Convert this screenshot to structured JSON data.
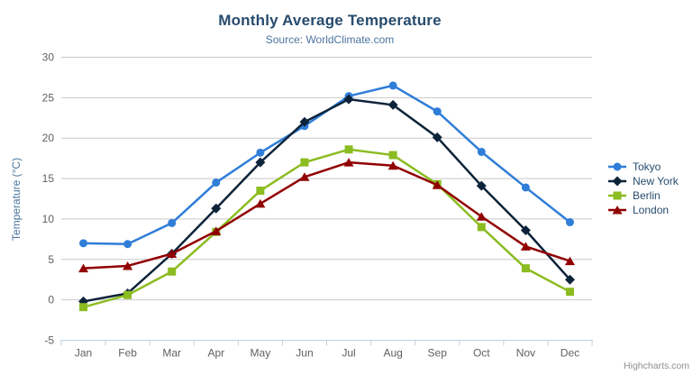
{
  "chart_data": {
    "type": "line",
    "title": "Monthly Average Temperature",
    "subtitle": "Source: WorldClimate.com",
    "xlabel": "",
    "ylabel": "Temperature (°C)",
    "categories": [
      "Jan",
      "Feb",
      "Mar",
      "Apr",
      "May",
      "Jun",
      "Jul",
      "Aug",
      "Sep",
      "Oct",
      "Nov",
      "Dec"
    ],
    "ylim": [
      -5,
      30
    ],
    "yticks": [
      -5,
      0,
      5,
      10,
      15,
      20,
      25,
      30
    ],
    "grid": true,
    "legend_position": "right",
    "series": [
      {
        "name": "Tokyo",
        "color": "#2f7ed8",
        "marker": "circle",
        "values": [
          7.0,
          6.9,
          9.5,
          14.5,
          18.2,
          21.5,
          25.2,
          26.5,
          23.3,
          18.3,
          13.9,
          9.6
        ]
      },
      {
        "name": "New York",
        "color": "#0d233a",
        "marker": "diamond",
        "values": [
          -0.2,
          0.8,
          5.7,
          11.3,
          17.0,
          22.0,
          24.8,
          24.1,
          20.1,
          14.1,
          8.6,
          2.5
        ]
      },
      {
        "name": "Berlin",
        "color": "#8bbc21",
        "marker": "square",
        "values": [
          -0.9,
          0.6,
          3.5,
          8.4,
          13.5,
          17.0,
          18.6,
          17.9,
          14.3,
          9.0,
          3.9,
          1.0
        ]
      },
      {
        "name": "London",
        "color": "#910000",
        "marker": "triangle",
        "values": [
          3.9,
          4.2,
          5.7,
          8.5,
          11.9,
          15.2,
          17.0,
          16.6,
          14.2,
          10.3,
          6.6,
          4.8
        ]
      }
    ],
    "colors": {
      "gridline": "#c9c9c9",
      "axis_line": "#c0d0e0",
      "axis_label": "#606060",
      "title": "#274b6d",
      "subtitle": "#4d759e",
      "legend_text": "#274b6d"
    }
  },
  "context_menu": {
    "icon": "hamburger-menu"
  },
  "credits": {
    "label": "Highcharts.com"
  }
}
